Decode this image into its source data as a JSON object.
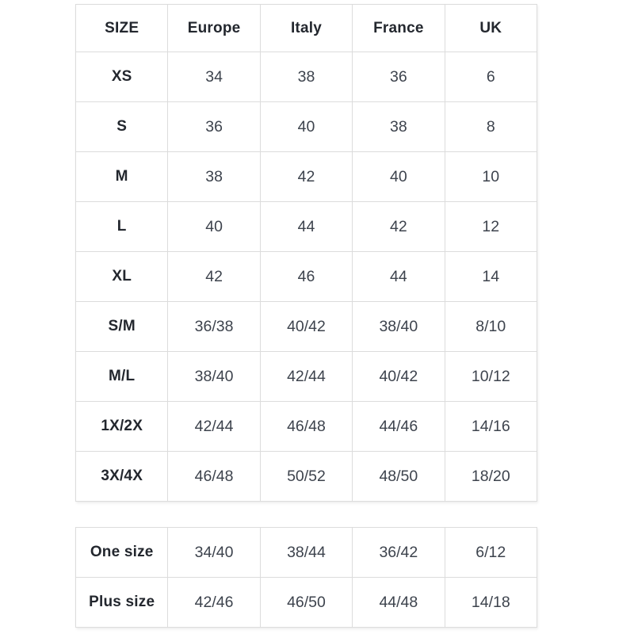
{
  "colors": {
    "border": "#dcdcdc",
    "header_text": "#23272e",
    "cell_text": "#3d434d",
    "background": "#ffffff"
  },
  "size_table": {
    "headers": [
      "SIZE",
      "Europe",
      "Italy",
      "France",
      "UK"
    ],
    "rows": [
      {
        "label": "XS",
        "values": [
          "34",
          "38",
          "36",
          "6"
        ]
      },
      {
        "label": "S",
        "values": [
          "36",
          "40",
          "38",
          "8"
        ]
      },
      {
        "label": "M",
        "values": [
          "38",
          "42",
          "40",
          "10"
        ]
      },
      {
        "label": "L",
        "values": [
          "40",
          "44",
          "42",
          "12"
        ]
      },
      {
        "label": "XL",
        "values": [
          "42",
          "46",
          "44",
          "14"
        ]
      },
      {
        "label": "S/M",
        "values": [
          "36/38",
          "40/42",
          "38/40",
          "8/10"
        ]
      },
      {
        "label": "M/L",
        "values": [
          "38/40",
          "42/44",
          "40/42",
          "10/12"
        ]
      },
      {
        "label": "1X/2X",
        "values": [
          "42/44",
          "46/48",
          "44/46",
          "14/16"
        ]
      },
      {
        "label": "3X/4X",
        "values": [
          "46/48",
          "50/52",
          "48/50",
          "18/20"
        ]
      }
    ]
  },
  "special_sizes_table": {
    "rows": [
      {
        "label": "One size",
        "values": [
          "34/40",
          "38/44",
          "36/42",
          "6/12"
        ]
      },
      {
        "label": "Plus size",
        "values": [
          "42/46",
          "46/50",
          "44/48",
          "14/18"
        ]
      }
    ]
  }
}
